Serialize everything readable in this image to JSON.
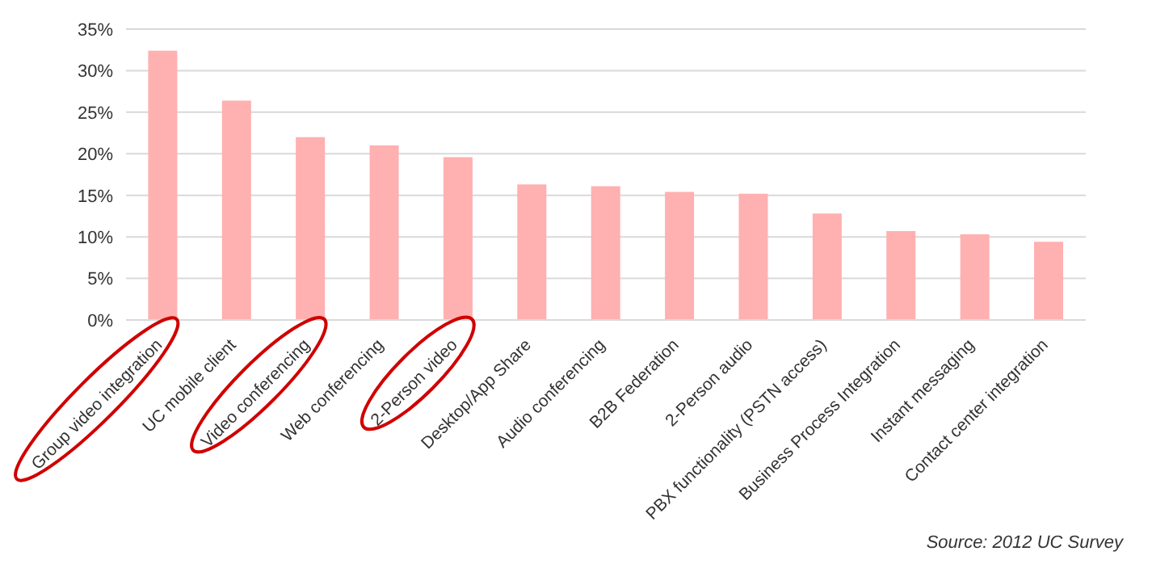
{
  "chart_data": {
    "type": "bar",
    "categories": [
      "Group video integration",
      "UC mobile client",
      "Video conferencing",
      "Web conferencing",
      "2-Person video",
      "Desktop/App Share",
      "Audio conferencing",
      "B2B Federation",
      "2-Person audio",
      "PBX functionality (PSTN access)",
      "Business Process Integration",
      "Instant messaging",
      "Contact center integration"
    ],
    "values": [
      32.4,
      26.4,
      22.0,
      21.0,
      19.6,
      16.3,
      16.1,
      15.4,
      15.2,
      12.8,
      10.7,
      10.3,
      9.4
    ],
    "color": "#ffb0b0",
    "ylim": [
      0,
      35
    ],
    "yticks": [
      {
        "value": 0,
        "label": "0%"
      },
      {
        "value": 5,
        "label": "5%"
      },
      {
        "value": 10,
        "label": "10%"
      },
      {
        "value": 15,
        "label": "15%"
      },
      {
        "value": 20,
        "label": "20%"
      },
      {
        "value": 25,
        "label": "25%"
      },
      {
        "value": 30,
        "label": "30%"
      },
      {
        "value": 35,
        "label": "35%"
      }
    ],
    "grid": "y",
    "annotations": [
      "Source: 2012 UC Survey"
    ]
  }
}
